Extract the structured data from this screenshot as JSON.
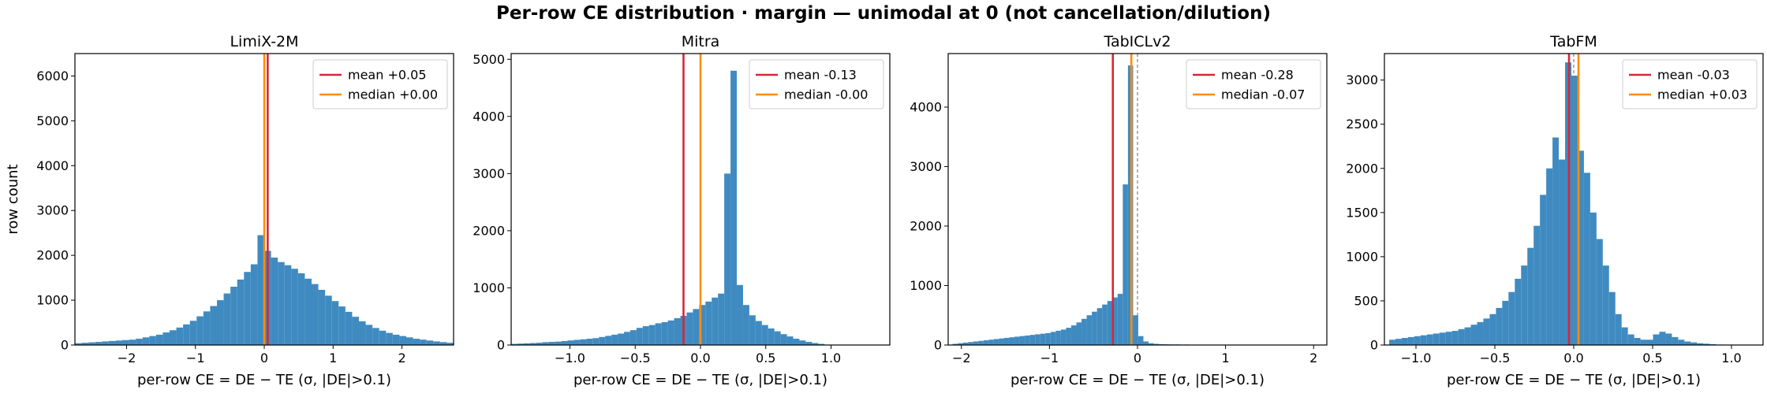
{
  "figure": {
    "title": "Per-row CE distribution · margin — unimodal at 0 (not cancellation/dilution)",
    "ylabel": "row count",
    "xlabel": "per-row CE = DE − TE (σ, |DE|>0.1)"
  },
  "colors": {
    "bar": "#3f8bc1",
    "mean": "#d62738",
    "median": "#ff8c0a",
    "zero_line": "#808080"
  },
  "chart_data": [
    {
      "type": "bar",
      "title": "LimiX-2M",
      "xlim": [
        -2.75,
        2.75
      ],
      "ylim": [
        0,
        6500
      ],
      "xticks": [
        -2,
        -1,
        0,
        1,
        2
      ],
      "xtick_labels": [
        "−2",
        "−1",
        "0",
        "1",
        "2"
      ],
      "yticks": [
        0,
        1000,
        2000,
        3000,
        4000,
        5000,
        6000
      ],
      "bin_range": [
        -2.75,
        2.75
      ],
      "values": [
        40,
        50,
        60,
        70,
        80,
        90,
        100,
        110,
        120,
        140,
        170,
        200,
        230,
        280,
        330,
        390,
        460,
        540,
        640,
        750,
        870,
        1000,
        1150,
        1300,
        1460,
        1630,
        1800,
        2450,
        2100,
        1950,
        1850,
        1780,
        1700,
        1600,
        1480,
        1360,
        1230,
        1100,
        980,
        860,
        740,
        630,
        530,
        450,
        380,
        320,
        270,
        230,
        200,
        170,
        140,
        120,
        100,
        80,
        65,
        50
      ],
      "mean": 0.05,
      "median": 0.0,
      "legend": [
        {
          "label": "mean +0.05",
          "kind": "mean"
        },
        {
          "label": "median +0.00",
          "kind": "median"
        }
      ],
      "legend_position": "top-right"
    },
    {
      "type": "bar",
      "title": "Mitra",
      "xlim": [
        -1.45,
        1.45
      ],
      "ylim": [
        0,
        5100
      ],
      "xticks": [
        -1.0,
        -0.5,
        0.0,
        0.5,
        1.0
      ],
      "xtick_labels": [
        "−1.0",
        "−0.5",
        "0.0",
        "0.5",
        "1.0"
      ],
      "yticks": [
        0,
        1000,
        2000,
        3000,
        4000,
        5000
      ],
      "bin_range": [
        -1.45,
        0.95
      ],
      "values": [
        20,
        25,
        30,
        35,
        40,
        50,
        55,
        60,
        70,
        80,
        90,
        100,
        110,
        120,
        140,
        160,
        180,
        200,
        230,
        260,
        300,
        330,
        350,
        380,
        400,
        430,
        470,
        510,
        570,
        630,
        700,
        760,
        830,
        900,
        3000,
        4800,
        1050,
        700,
        520,
        420,
        350,
        290,
        240,
        190,
        150,
        110,
        80,
        55,
        35,
        20
      ],
      "mean": -0.13,
      "median": -0.0,
      "legend": [
        {
          "label": "mean -0.13",
          "kind": "mean"
        },
        {
          "label": "median -0.00",
          "kind": "median"
        }
      ],
      "legend_position": "top-right"
    },
    {
      "type": "bar",
      "title": "TabICLv2",
      "xlim": [
        -2.15,
        2.15
      ],
      "ylim": [
        0,
        4900
      ],
      "xticks": [
        -2,
        -1,
        0,
        1,
        2
      ],
      "xtick_labels": [
        "−2",
        "−1",
        "0",
        "1",
        "2"
      ],
      "yticks": [
        0,
        1000,
        2000,
        3000,
        4000
      ],
      "bin_range": [
        -2.1,
        2.0
      ],
      "values": [
        20,
        30,
        40,
        50,
        60,
        70,
        80,
        90,
        100,
        110,
        120,
        130,
        140,
        150,
        160,
        170,
        180,
        190,
        200,
        220,
        240,
        260,
        290,
        330,
        380,
        440,
        500,
        560,
        620,
        680,
        740,
        800,
        860,
        2700,
        4700,
        500,
        150,
        60,
        30,
        20,
        15,
        12,
        10,
        10,
        8,
        8,
        6,
        6,
        5,
        5,
        4,
        4,
        4,
        3,
        3,
        3,
        3,
        2,
        2,
        2,
        2,
        2,
        2,
        2,
        1,
        1,
        1,
        1,
        1,
        1
      ],
      "mean": -0.28,
      "median": -0.07,
      "legend": [
        {
          "label": "mean -0.28",
          "kind": "mean"
        },
        {
          "label": "median -0.07",
          "kind": "median"
        }
      ],
      "legend_position": "top-right"
    },
    {
      "type": "bar",
      "title": "TabFM",
      "xlim": [
        -1.2,
        1.2
      ],
      "ylim": [
        0,
        3300
      ],
      "xticks": [
        -1.0,
        -0.5,
        0.0,
        0.5,
        1.0
      ],
      "xtick_labels": [
        "−1.0",
        "−0.5",
        "0.0",
        "0.5",
        "1.0"
      ],
      "yticks": [
        0,
        500,
        1000,
        1500,
        2000,
        2500,
        3000
      ],
      "bin_range": [
        -1.17,
        1.1
      ],
      "values": [
        60,
        70,
        80,
        90,
        100,
        110,
        120,
        130,
        140,
        150,
        160,
        180,
        200,
        230,
        260,
        300,
        350,
        420,
        500,
        600,
        750,
        900,
        1100,
        1350,
        1700,
        2000,
        2350,
        2100,
        3200,
        3050,
        2200,
        1950,
        1500,
        1200,
        900,
        600,
        350,
        200,
        120,
        80,
        60,
        60,
        120,
        150,
        130,
        90,
        60,
        40,
        30,
        20,
        15,
        10,
        5,
        3,
        2,
        1,
        1
      ],
      "mean": -0.03,
      "median": 0.03,
      "legend": [
        {
          "label": "mean -0.03",
          "kind": "mean"
        },
        {
          "label": "median +0.03",
          "kind": "median"
        }
      ],
      "legend_position": "top-right"
    }
  ]
}
